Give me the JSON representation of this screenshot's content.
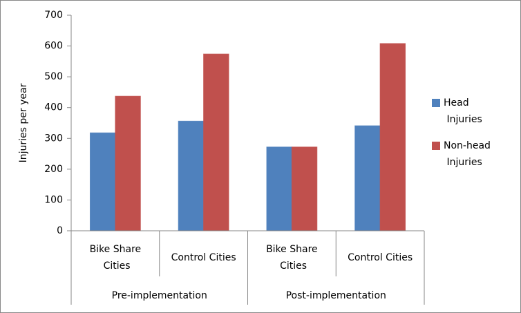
{
  "chart_data": {
    "type": "bar",
    "y_label": "Injuries per year",
    "categories": [
      "Bike Share Cities",
      "Control Cities",
      "Bike Share Cities",
      "Control Cities"
    ],
    "groups": [
      "Pre-implementation",
      "Post-implementation"
    ],
    "series": [
      {
        "name": "Head Injuries",
        "color": "#4f81bd",
        "values": [
          318,
          356,
          272,
          341
        ]
      },
      {
        "name": "Non-head Injuries",
        "color": "#c0504d",
        "values": [
          437,
          574,
          272,
          608
        ]
      }
    ],
    "ylim": [
      0,
      700
    ],
    "yticks": [
      0,
      100,
      200,
      300,
      400,
      500,
      600,
      700
    ],
    "grid": false,
    "legend": "right"
  }
}
